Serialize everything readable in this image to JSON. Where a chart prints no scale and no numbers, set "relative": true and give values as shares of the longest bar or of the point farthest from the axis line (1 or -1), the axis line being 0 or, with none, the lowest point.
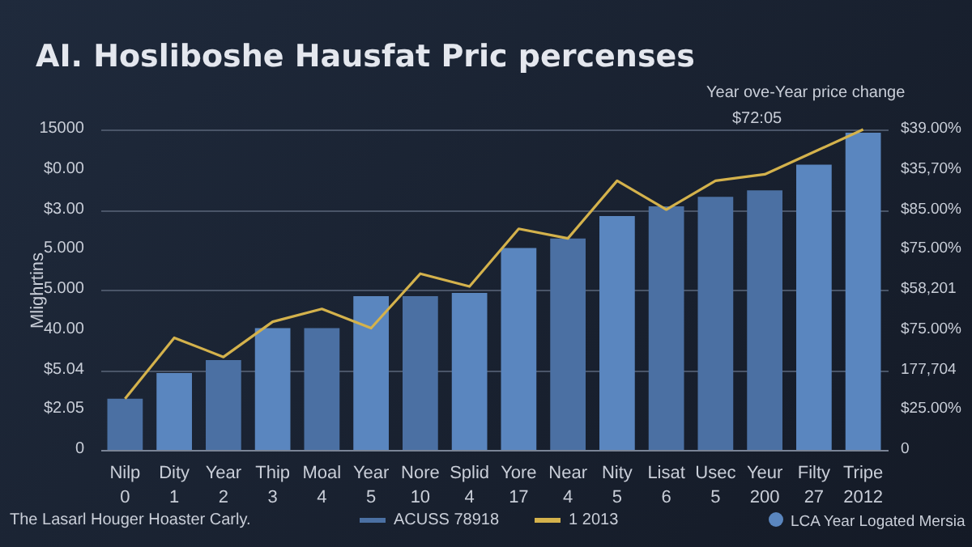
{
  "chart_data": {
    "type": "bar",
    "title": "AI. Hosliboshe Hausfat Pric percenses",
    "ylabel": "Mlighrtins",
    "relative": true,
    "categories": [
      "Nilp\n0",
      "Dity\n1",
      "Year\n2",
      "Thip\n3",
      "Moal\n4",
      "Year\n5",
      "Nore\n10",
      "Splid\n4",
      "Yore\n17",
      "Near\n4",
      "Nity\n5",
      "Lisat\n6",
      "Usec\n5",
      "Yeur\n200",
      "Filty\n27",
      "Tripe\n2012"
    ],
    "series": [
      {
        "name": "ACUSS 78918",
        "colors": [
          "#4b70a3",
          "#5a86bf",
          "#4b70a3",
          "#5a86bf",
          "#4b70a3",
          "#5a86bf",
          "#4b70a3",
          "#5a86bf",
          "#5a86bf",
          "#4b70a3",
          "#5a86bf",
          "#4b70a3",
          "#4b70a3",
          "#4b70a3",
          "#5a86bf",
          "#5a86bf"
        ],
        "values": [
          0.16,
          0.24,
          0.28,
          0.38,
          0.38,
          0.48,
          0.48,
          0.49,
          0.63,
          0.66,
          0.73,
          0.76,
          0.79,
          0.81,
          0.89,
          0.99
        ]
      },
      {
        "name": "1 2013",
        "type": "line",
        "color": "#d4b24c",
        "values": [
          0.16,
          0.35,
          0.29,
          0.4,
          0.44,
          0.38,
          0.55,
          0.51,
          0.69,
          0.66,
          0.84,
          0.75,
          0.84,
          0.86,
          0.93,
          1.0
        ]
      }
    ],
    "grid": "y",
    "legend": "bottom",
    "annotations": [
      "Year ove-Year price change",
      "$72:05",
      "The Lasarl Houger Hoaster Carly.",
      "LCA Year Logated Mersia",
      "0",
      "$2.05",
      "$5.04",
      "40.00",
      "5.000",
      "5.000",
      "$3.00",
      "$0.00",
      "15000",
      "0",
      "$25.00%",
      "177,704",
      "$75.00%",
      "$58,201",
      "$75.00%",
      "$85.00%",
      "$35,70%",
      "$39.00%"
    ]
  }
}
